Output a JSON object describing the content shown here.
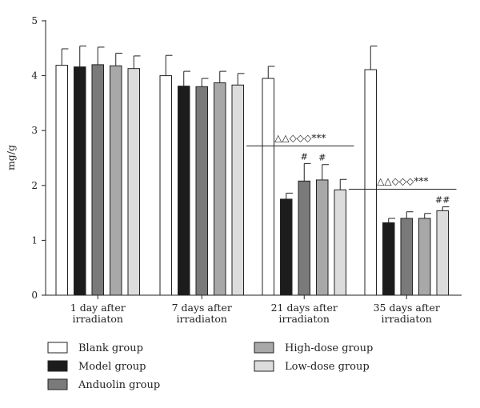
{
  "chart_data": {
    "type": "bar",
    "ylabel": "mg/g",
    "xlabel": "",
    "ylim": [
      0,
      5
    ],
    "yticks": [
      0,
      1,
      2,
      3,
      4,
      5
    ],
    "grid": false,
    "legend_position": "bottom",
    "categories": [
      [
        "1 day after",
        "irradiaton"
      ],
      [
        "7 days after",
        "irradiaton"
      ],
      [
        "21 days after",
        "irradiaton"
      ],
      [
        "35 days after",
        "irradiaton"
      ]
    ],
    "series": [
      {
        "name": "Blank group",
        "color": "#ffffff",
        "values": [
          4.19,
          4.0,
          3.95,
          4.11
        ],
        "errors": [
          0.3,
          0.37,
          0.22,
          0.43
        ],
        "marks": [
          "",
          "",
          "",
          ""
        ]
      },
      {
        "name": "Model group",
        "color": "#1c1c1c",
        "values": [
          4.16,
          3.81,
          1.75,
          1.32
        ],
        "errors": [
          0.38,
          0.27,
          0.11,
          0.08
        ],
        "marks": [
          "",
          "",
          "",
          ""
        ]
      },
      {
        "name": "Anduolin group",
        "color": "#7a7a7a",
        "values": [
          4.2,
          3.8,
          2.08,
          1.4
        ],
        "errors": [
          0.32,
          0.15,
          0.32,
          0.12
        ],
        "marks": [
          "",
          "",
          "#",
          ""
        ]
      },
      {
        "name": "High-dose group",
        "color": "#a8a8a8",
        "values": [
          4.18,
          3.87,
          2.1,
          1.4
        ],
        "errors": [
          0.23,
          0.21,
          0.28,
          0.09
        ],
        "marks": [
          "",
          "",
          "#",
          ""
        ]
      },
      {
        "name": "Low-dose group",
        "color": "#dcdcdc",
        "values": [
          4.13,
          3.83,
          1.92,
          1.54
        ],
        "errors": [
          0.23,
          0.21,
          0.19,
          0.07
        ],
        "marks": [
          "",
          "",
          "",
          "##"
        ]
      }
    ],
    "annotations": [
      {
        "category_index": 2,
        "text": "△△◇◇◇***"
      },
      {
        "category_index": 3,
        "text": "△△◇◇◇***"
      }
    ]
  }
}
